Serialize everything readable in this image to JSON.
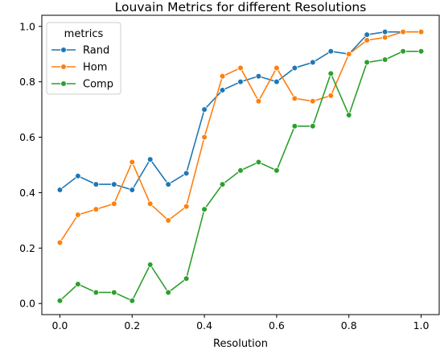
{
  "chart_data": {
    "type": "line",
    "title": "Louvain Metrics for different Resolutions",
    "xlabel": "Resolution",
    "ylabel": "",
    "xlim": [
      -0.05,
      1.05
    ],
    "ylim": [
      -0.04,
      1.04
    ],
    "xticks": [
      "0.0",
      "0.2",
      "0.4",
      "0.6",
      "0.8",
      "1.0"
    ],
    "yticks": [
      "0.0",
      "0.2",
      "0.4",
      "0.6",
      "0.8",
      "1.0"
    ],
    "grid": false,
    "legend": {
      "title": "metrics",
      "placement": "top-left"
    },
    "x": [
      0.0,
      0.05,
      0.1,
      0.15,
      0.2,
      0.25,
      0.3,
      0.35,
      0.4,
      0.45,
      0.5,
      0.55,
      0.6,
      0.65,
      0.7,
      0.75,
      0.8,
      0.85,
      0.9,
      0.95,
      1.0
    ],
    "series": [
      {
        "name": "Rand",
        "color": "#1f77b4",
        "values": [
          0.41,
          0.46,
          0.43,
          0.43,
          0.41,
          0.52,
          0.43,
          0.47,
          0.7,
          0.77,
          0.8,
          0.82,
          0.8,
          0.85,
          0.87,
          0.91,
          0.9,
          0.97,
          0.98,
          0.98,
          0.98
        ]
      },
      {
        "name": "Hom",
        "color": "#ff7f0e",
        "values": [
          0.22,
          0.32,
          0.34,
          0.36,
          0.51,
          0.36,
          0.3,
          0.35,
          0.6,
          0.82,
          0.85,
          0.73,
          0.85,
          0.74,
          0.73,
          0.75,
          0.9,
          0.95,
          0.96,
          0.98,
          0.98
        ]
      },
      {
        "name": "Comp",
        "color": "#2ca02c",
        "values": [
          0.01,
          0.07,
          0.04,
          0.04,
          0.01,
          0.14,
          0.04,
          0.09,
          0.34,
          0.43,
          0.48,
          0.51,
          0.48,
          0.64,
          0.64,
          0.83,
          0.68,
          0.87,
          0.88,
          0.91,
          0.91
        ]
      }
    ]
  }
}
